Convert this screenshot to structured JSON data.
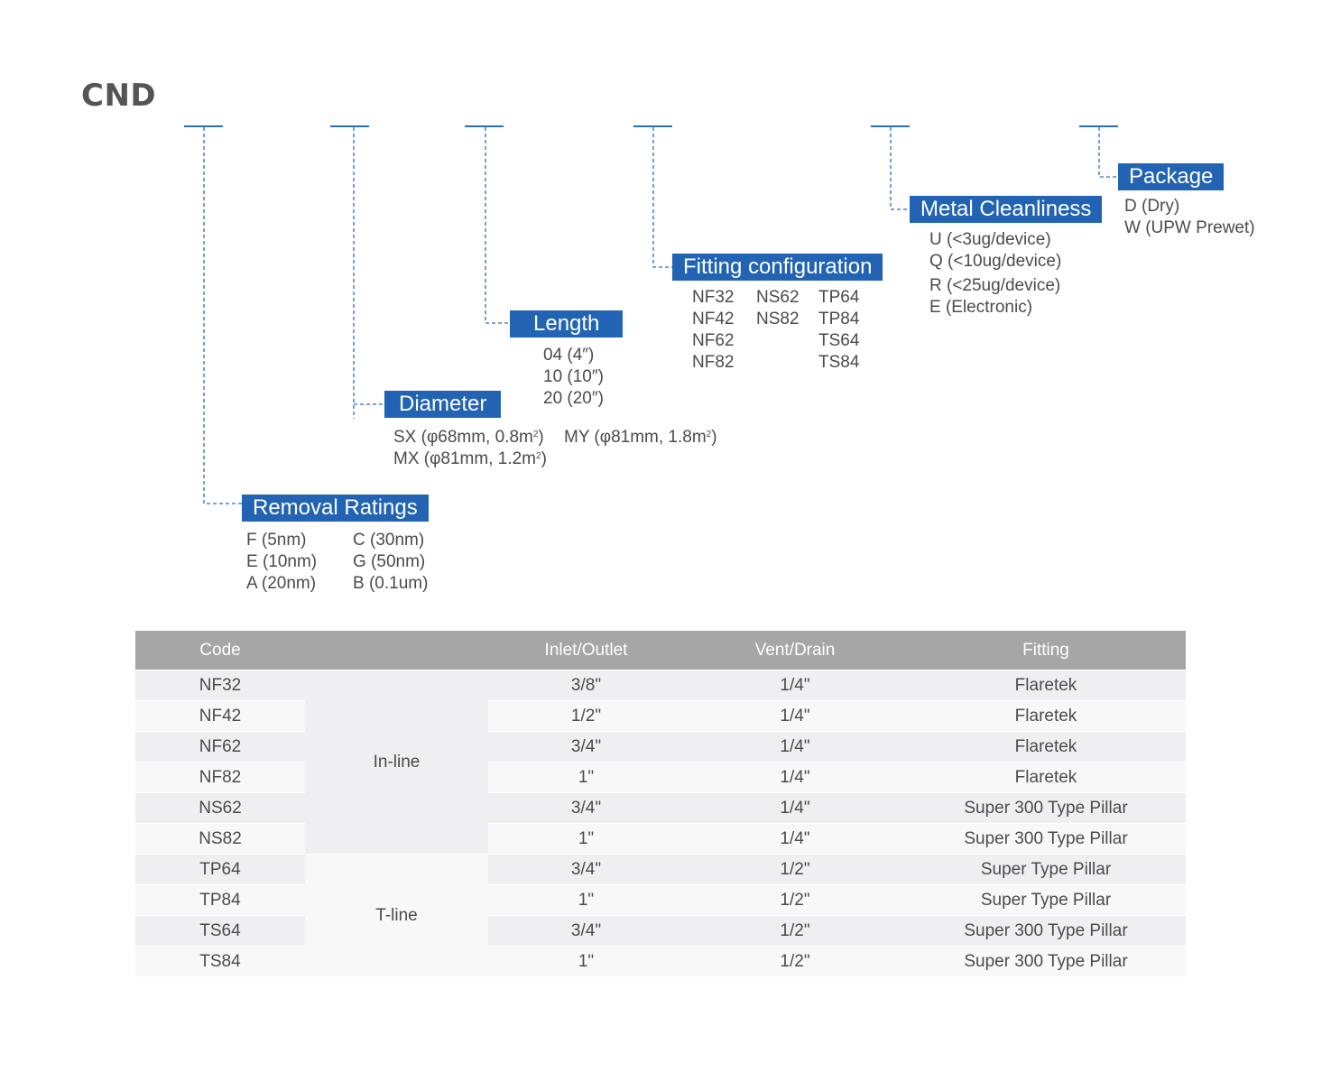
{
  "title": "CND",
  "sections": {
    "removal": {
      "label": "Removal Ratings",
      "col1": [
        "F (5nm)",
        "E (10nm)",
        "A (20nm)"
      ],
      "col2": [
        "C (30nm)",
        "G (50nm)",
        "B (0.1um)"
      ]
    },
    "diameter": {
      "label": "Diameter",
      "sx_text": "SX  (φ68mm, 0.8m",
      "sx_close": ")",
      "mx_text": "MX (φ81mm, 1.2m",
      "mx_close": ")",
      "my_text": "MY (φ81mm, 1.8m",
      "my_close": ")",
      "sup": "2"
    },
    "length": {
      "label": "Length",
      "options": [
        "04 (4″)",
        "10 (10″)",
        "20 (20″)"
      ]
    },
    "fitting": {
      "label": "Fitting configuration",
      "col1": [
        "NF32",
        "NF42",
        "NF62",
        "NF82"
      ],
      "col2": [
        "NS62",
        "NS82"
      ],
      "col3": [
        "TP64",
        "TP84",
        "TS64",
        "TS84"
      ]
    },
    "metal": {
      "label": "Metal Cleanliness",
      "options": [
        "U (<3ug/device)",
        "Q (<10ug/device)",
        "R (<25ug/device)",
        "E (Electronic)"
      ]
    },
    "package": {
      "label": "Package",
      "options": [
        "D (Dry)",
        "W (UPW Prewet)"
      ]
    }
  },
  "table": {
    "headers": [
      "Code",
      "",
      "Inlet/Outlet",
      "Vent/Drain",
      "Fitting"
    ],
    "groups": [
      "In-line",
      "T-line"
    ],
    "rows": [
      {
        "code": "NF32",
        "inlet": "3/8\"",
        "vent": "1/4\"",
        "fitting": "Flaretek"
      },
      {
        "code": "NF42",
        "inlet": "1/2\"",
        "vent": "1/4\"",
        "fitting": "Flaretek"
      },
      {
        "code": "NF62",
        "inlet": "3/4\"",
        "vent": "1/4\"",
        "fitting": "Flaretek"
      },
      {
        "code": "NF82",
        "inlet": "1\"",
        "vent": "1/4\"",
        "fitting": "Flaretek"
      },
      {
        "code": "NS62",
        "inlet": "3/4\"",
        "vent": "1/4\"",
        "fitting": "Super 300 Type Pillar"
      },
      {
        "code": "NS82",
        "inlet": "1\"",
        "vent": "1/4\"",
        "fitting": "Super 300 Type Pillar"
      },
      {
        "code": "TP64",
        "inlet": "3/4\"",
        "vent": "1/2\"",
        "fitting": "Super Type Pillar"
      },
      {
        "code": "TP84",
        "inlet": "1\"",
        "vent": "1/2\"",
        "fitting": "Super Type Pillar"
      },
      {
        "code": "TS64",
        "inlet": "3/4\"",
        "vent": "1/2\"",
        "fitting": "Super 300 Type Pillar"
      },
      {
        "code": "TS84",
        "inlet": "1\"",
        "vent": "1/2\"",
        "fitting": "Super 300 Type Pillar"
      }
    ]
  }
}
